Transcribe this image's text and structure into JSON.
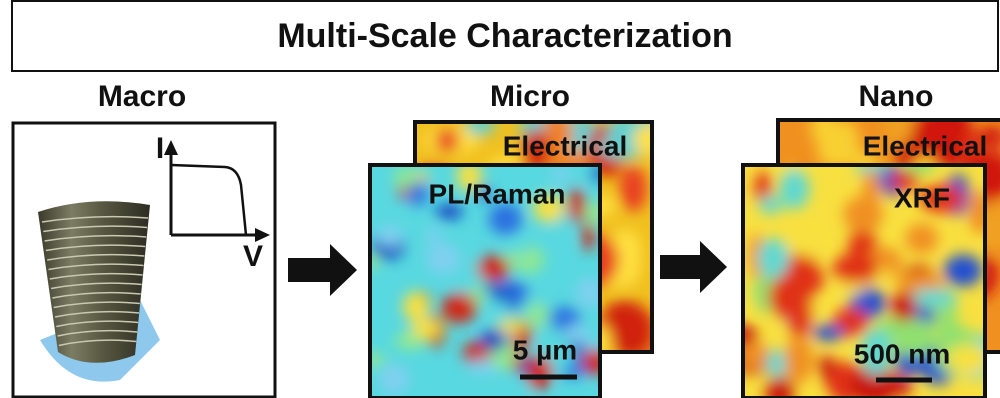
{
  "title": "Multi-Scale Characterization",
  "panels": [
    {
      "label": "Macro",
      "axis_y": "I",
      "axis_x": "V"
    },
    {
      "label": "Micro",
      "back_map": "Electrical",
      "front_map": "PL/Raman",
      "scale_bar": "5 µm"
    },
    {
      "label": "Nano",
      "back_map": "Electrical",
      "front_map": "XRF",
      "scale_bar": "500 nm"
    }
  ]
}
